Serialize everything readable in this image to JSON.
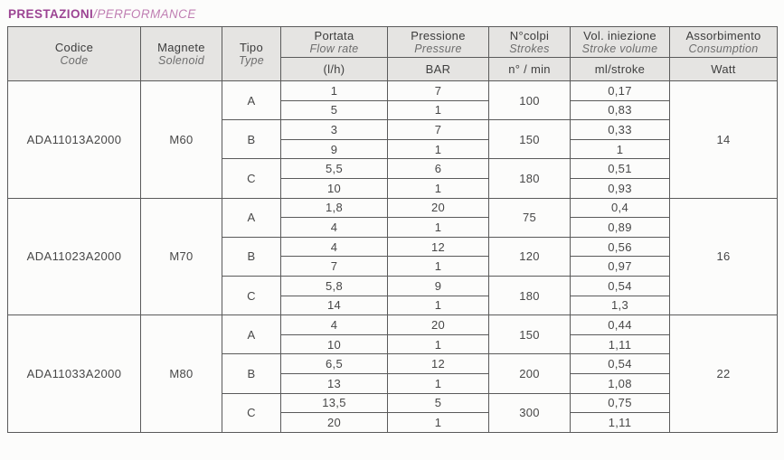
{
  "title": {
    "primary": "PRESTAZIONI",
    "separator": "/",
    "secondary": "PERFORMANCE"
  },
  "colors": {
    "title_primary": "#9c4493",
    "title_secondary": "#c07fb3",
    "header_background": "#e5e4e2",
    "grid_border": "#5a5a5a",
    "text": "#474747"
  },
  "table": {
    "headers": {
      "codice": {
        "it": "Codice",
        "en": "Code"
      },
      "magnete": {
        "it": "Magnete",
        "en": "Solenoid"
      },
      "tipo": {
        "it": "Tipo",
        "en": "Type"
      },
      "portata": {
        "it": "Portata",
        "en": "Flow rate",
        "unit": "(l/h)"
      },
      "pressione": {
        "it": "Pressione",
        "en": "Pressure",
        "unit": "BAR"
      },
      "colpi": {
        "it": "N°colpi",
        "en": "Strokes",
        "unit": "n° / min"
      },
      "iniezione": {
        "it": "Vol. iniezione",
        "en": "Stroke volume",
        "unit": "ml/stroke"
      },
      "assorbimento": {
        "it": "Assorbimento",
        "en": "Consumption",
        "unit": "Watt"
      }
    },
    "products": [
      {
        "code": "ADA11013A2000",
        "solenoid": "M60",
        "watt": "14",
        "types": [
          {
            "type": "A",
            "strokes": "100",
            "rows": [
              {
                "flow": "1",
                "bar": "7",
                "ml": "0,17"
              },
              {
                "flow": "5",
                "bar": "1",
                "ml": "0,83"
              }
            ]
          },
          {
            "type": "B",
            "strokes": "150",
            "rows": [
              {
                "flow": "3",
                "bar": "7",
                "ml": "0,33"
              },
              {
                "flow": "9",
                "bar": "1",
                "ml": "1"
              }
            ]
          },
          {
            "type": "C",
            "strokes": "180",
            "rows": [
              {
                "flow": "5,5",
                "bar": "6",
                "ml": "0,51"
              },
              {
                "flow": "10",
                "bar": "1",
                "ml": "0,93"
              }
            ]
          }
        ]
      },
      {
        "code": "ADA11023A2000",
        "solenoid": "M70",
        "watt": "16",
        "types": [
          {
            "type": "A",
            "strokes": "75",
            "rows": [
              {
                "flow": "1,8",
                "bar": "20",
                "ml": "0,4"
              },
              {
                "flow": "4",
                "bar": "1",
                "ml": "0,89"
              }
            ]
          },
          {
            "type": "B",
            "strokes": "120",
            "rows": [
              {
                "flow": "4",
                "bar": "12",
                "ml": "0,56"
              },
              {
                "flow": "7",
                "bar": "1",
                "ml": "0,97"
              }
            ]
          },
          {
            "type": "C",
            "strokes": "180",
            "rows": [
              {
                "flow": "5,8",
                "bar": "9",
                "ml": "0,54"
              },
              {
                "flow": "14",
                "bar": "1",
                "ml": "1,3"
              }
            ]
          }
        ]
      },
      {
        "code": "ADA11033A2000",
        "solenoid": "M80",
        "watt": "22",
        "types": [
          {
            "type": "A",
            "strokes": "150",
            "rows": [
              {
                "flow": "4",
                "bar": "20",
                "ml": "0,44"
              },
              {
                "flow": "10",
                "bar": "1",
                "ml": "1,11"
              }
            ]
          },
          {
            "type": "B",
            "strokes": "200",
            "rows": [
              {
                "flow": "6,5",
                "bar": "12",
                "ml": "0,54"
              },
              {
                "flow": "13",
                "bar": "1",
                "ml": "1,08"
              }
            ]
          },
          {
            "type": "C",
            "strokes": "300",
            "rows": [
              {
                "flow": "13,5",
                "bar": "5",
                "ml": "0,75"
              },
              {
                "flow": "20",
                "bar": "1",
                "ml": "1,11"
              }
            ]
          }
        ]
      }
    ]
  }
}
